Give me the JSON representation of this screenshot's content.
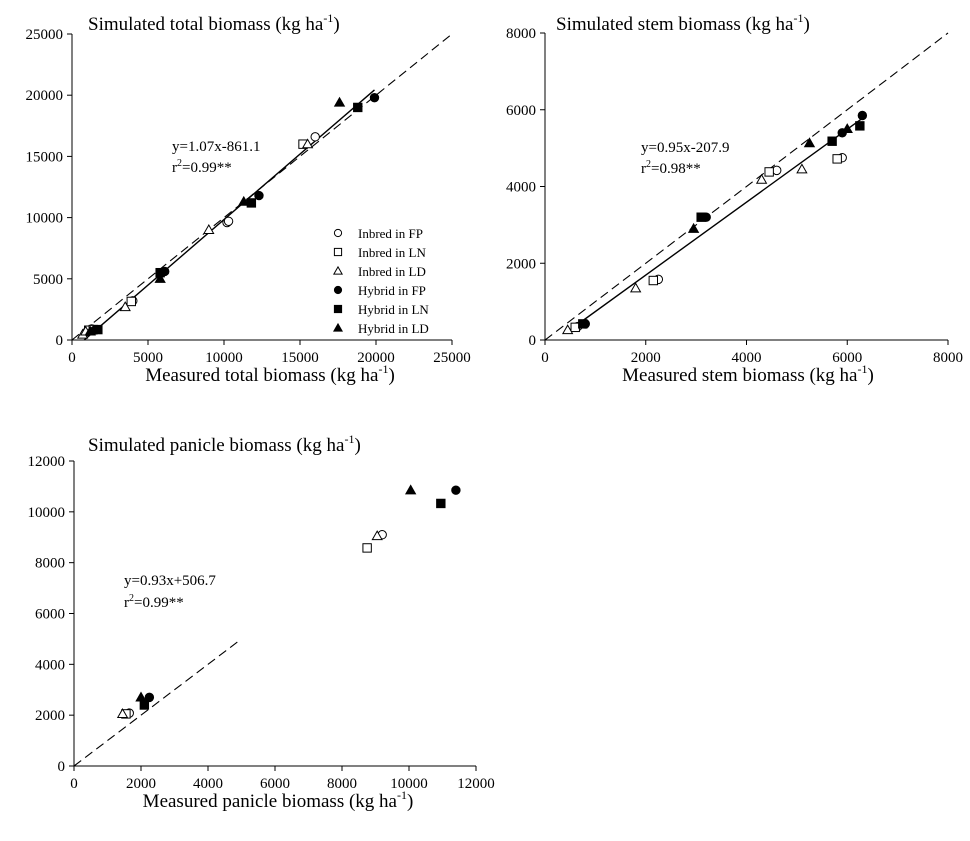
{
  "chart_data": [
    {
      "type": "scatter",
      "panel": "total",
      "title": "Simulated total biomass (kg ha",
      "title_sup": "-1",
      "title_end": ")",
      "xlabel": "Measured total biomass (kg ha",
      "xlabel_sup": "-1",
      "xlabel_end": ")",
      "xlim": [
        0,
        25000
      ],
      "ylim": [
        0,
        25000
      ],
      "xticks": [
        0,
        5000,
        10000,
        15000,
        20000,
        25000
      ],
      "yticks": [
        0,
        5000,
        10000,
        15000,
        20000,
        25000
      ],
      "equation": "y=1.07x-861.1",
      "r2_prefix": "r",
      "r2_sup": "2",
      "r2_value": "=0.99**",
      "regression": {
        "slope": 1.07,
        "intercept": -861.1,
        "x_range": [
          800,
          19900
        ]
      },
      "one_to_one": true,
      "legend_position": "right",
      "series": [
        {
          "name": "Inbred in FP",
          "marker": "circle",
          "fill": "open",
          "points": [
            [
              1000,
              700
            ],
            [
              1300,
              900
            ],
            [
              4000,
              3200
            ],
            [
              10200,
              9600
            ],
            [
              10300,
              9700
            ],
            [
              16000,
              16600
            ]
          ]
        },
        {
          "name": "Inbred in LN",
          "marker": "square",
          "fill": "open",
          "points": [
            [
              1100,
              800
            ],
            [
              1400,
              850
            ],
            [
              3900,
              3150
            ],
            [
              15200,
              16000
            ]
          ]
        },
        {
          "name": "Inbred in LD",
          "marker": "triangle",
          "fill": "open",
          "points": [
            [
              700,
              450
            ],
            [
              900,
              700
            ],
            [
              3500,
              2700
            ],
            [
              9000,
              9000
            ],
            [
              15500,
              16000
            ]
          ]
        },
        {
          "name": "Hybrid in FP",
          "marker": "circle",
          "fill": "filled",
          "points": [
            [
              1500,
              800
            ],
            [
              6100,
              5600
            ],
            [
              12300,
              11800
            ],
            [
              19900,
              19800
            ]
          ]
        },
        {
          "name": "Hybrid in LN",
          "marker": "square",
          "fill": "filled",
          "points": [
            [
              1700,
              850
            ],
            [
              5800,
              5500
            ],
            [
              11800,
              11200
            ],
            [
              18800,
              19000
            ]
          ]
        },
        {
          "name": "Hybrid in LD",
          "marker": "triangle",
          "fill": "filled",
          "points": [
            [
              1200,
              700
            ],
            [
              5800,
              5000
            ],
            [
              11300,
              11300
            ],
            [
              17600,
              19400
            ]
          ]
        }
      ]
    },
    {
      "type": "scatter",
      "panel": "stem",
      "title": "Simulated stem biomass (kg ha",
      "title_sup": "-1",
      "title_end": ")",
      "xlabel": "Measured stem biomass (kg ha",
      "xlabel_sup": "-1",
      "xlabel_end": ")",
      "xlim": [
        0,
        8000
      ],
      "ylim": [
        0,
        8000
      ],
      "xticks": [
        0,
        2000,
        4000,
        6000,
        8000
      ],
      "yticks": [
        0,
        2000,
        4000,
        6000,
        8000
      ],
      "equation": "y=0.95x-207.9",
      "r2_prefix": "r",
      "r2_sup": "2",
      "r2_value": "=0.98**",
      "regression": {
        "slope": 0.95,
        "intercept": -207.9,
        "x_range": [
          500,
          6300
        ]
      },
      "one_to_one": true,
      "series": [
        {
          "name": "Inbred in FP",
          "marker": "circle",
          "fill": "open",
          "points": [
            [
              650,
              350
            ],
            [
              2250,
              1580
            ],
            [
              4600,
              4420
            ],
            [
              5900,
              4750
            ]
          ]
        },
        {
          "name": "Inbred in LN",
          "marker": "square",
          "fill": "open",
          "points": [
            [
              600,
              330
            ],
            [
              2150,
              1550
            ],
            [
              4450,
              4380
            ],
            [
              5800,
              4720
            ]
          ]
        },
        {
          "name": "Inbred in LD",
          "marker": "triangle",
          "fill": "open",
          "points": [
            [
              450,
              260
            ],
            [
              1800,
              1350
            ],
            [
              4300,
              4180
            ],
            [
              5100,
              4450
            ]
          ]
        },
        {
          "name": "Hybrid in FP",
          "marker": "circle",
          "fill": "filled",
          "points": [
            [
              800,
              420
            ],
            [
              3200,
              3200
            ],
            [
              5900,
              5400
            ],
            [
              6300,
              5850
            ]
          ]
        },
        {
          "name": "Hybrid in LN",
          "marker": "square",
          "fill": "filled",
          "points": [
            [
              750,
              420
            ],
            [
              3100,
              3200
            ],
            [
              5700,
              5180
            ],
            [
              6250,
              5580
            ]
          ]
        },
        {
          "name": "Hybrid in LD",
          "marker": "triangle",
          "fill": "filled",
          "points": [
            [
              2950,
              2900
            ],
            [
              5250,
              5130
            ],
            [
              6000,
              5500
            ]
          ]
        }
      ]
    },
    {
      "type": "scatter",
      "panel": "panicle",
      "title": "Simulated panicle biomass (kg ha",
      "title_sup": "-1",
      "title_end": ")",
      "xlabel": "Measured panicle biomass (kg ha",
      "xlabel_sup": "-1",
      "xlabel_end": ")",
      "xlim": [
        0,
        12000
      ],
      "ylim": [
        0,
        12000
      ],
      "xticks": [
        0,
        2000,
        4000,
        6000,
        8000,
        10000,
        12000
      ],
      "yticks": [
        0,
        2000,
        4000,
        6000,
        8000,
        10000,
        12000
      ],
      "equation": "y=0.93x+506.7",
      "r2_prefix": "r",
      "r2_sup": "2",
      "r2_value": "=0.99**",
      "one_to_one": true,
      "one_to_one_x_range": [
        0,
        4900
      ],
      "series": [
        {
          "name": "Inbred in FP",
          "marker": "circle",
          "fill": "open",
          "points": [
            [
              1650,
              2080
            ],
            [
              9200,
              9100
            ]
          ]
        },
        {
          "name": "Inbred in LN",
          "marker": "square",
          "fill": "open",
          "points": [
            [
              1550,
              2050
            ],
            [
              8750,
              8580
            ]
          ]
        },
        {
          "name": "Inbred in LD",
          "marker": "triangle",
          "fill": "open",
          "points": [
            [
              1450,
              2050
            ],
            [
              9050,
              9050
            ]
          ]
        },
        {
          "name": "Hybrid in FP",
          "marker": "circle",
          "fill": "filled",
          "points": [
            [
              2250,
              2700
            ],
            [
              11400,
              10850
            ]
          ]
        },
        {
          "name": "Hybrid in LN",
          "marker": "square",
          "fill": "filled",
          "points": [
            [
              2100,
              2400
            ],
            [
              10950,
              10330
            ]
          ]
        },
        {
          "name": "Hybrid in LD",
          "marker": "triangle",
          "fill": "filled",
          "points": [
            [
              2000,
              2700
            ],
            [
              10050,
              10850
            ]
          ]
        }
      ]
    }
  ]
}
